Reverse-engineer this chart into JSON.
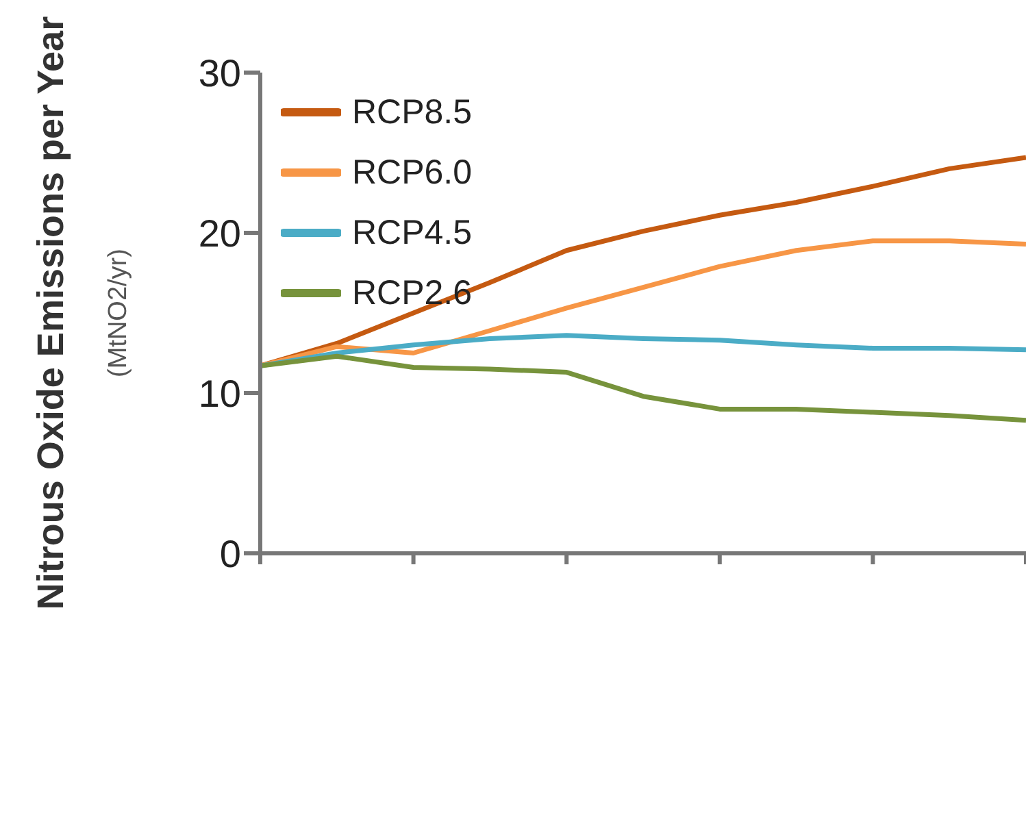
{
  "chart_data": {
    "type": "line",
    "ylabel": "Nitrous Oxide Emissions per Year\n(MtNO2/yr)",
    "categories": [
      null,
      null,
      null,
      null,
      null,
      null,
      null,
      null,
      null,
      null,
      null
    ],
    "series": [
      {
        "name": "RCP8.5",
        "color": "#c55a11",
        "values": [
          11.7,
          13.1,
          15.0,
          16.9,
          18.9,
          20.1,
          21.1,
          21.9,
          22.9,
          24.0,
          24.7
        ]
      },
      {
        "name": "RCP6.0",
        "color": "#f79646",
        "values": [
          11.7,
          12.9,
          12.5,
          13.9,
          15.3,
          16.6,
          17.9,
          18.9,
          19.5,
          19.5,
          19.3
        ]
      },
      {
        "name": "RCP4.5",
        "color": "#4bacc6",
        "values": [
          11.7,
          12.5,
          13.0,
          13.4,
          13.6,
          13.4,
          13.3,
          13.0,
          12.8,
          12.8,
          12.7
        ]
      },
      {
        "name": "RCP2.6",
        "color": "#77933c",
        "values": [
          11.7,
          12.3,
          11.6,
          11.5,
          11.3,
          9.8,
          9.0,
          9.0,
          8.8,
          8.6,
          8.3
        ]
      }
    ],
    "ylim": [
      0,
      30
    ],
    "yticks": [
      0,
      10,
      20,
      30
    ],
    "grid": false,
    "legend": "top left",
    "marker": "none",
    "line_style": "solid",
    "tick_labels": "y"
  }
}
